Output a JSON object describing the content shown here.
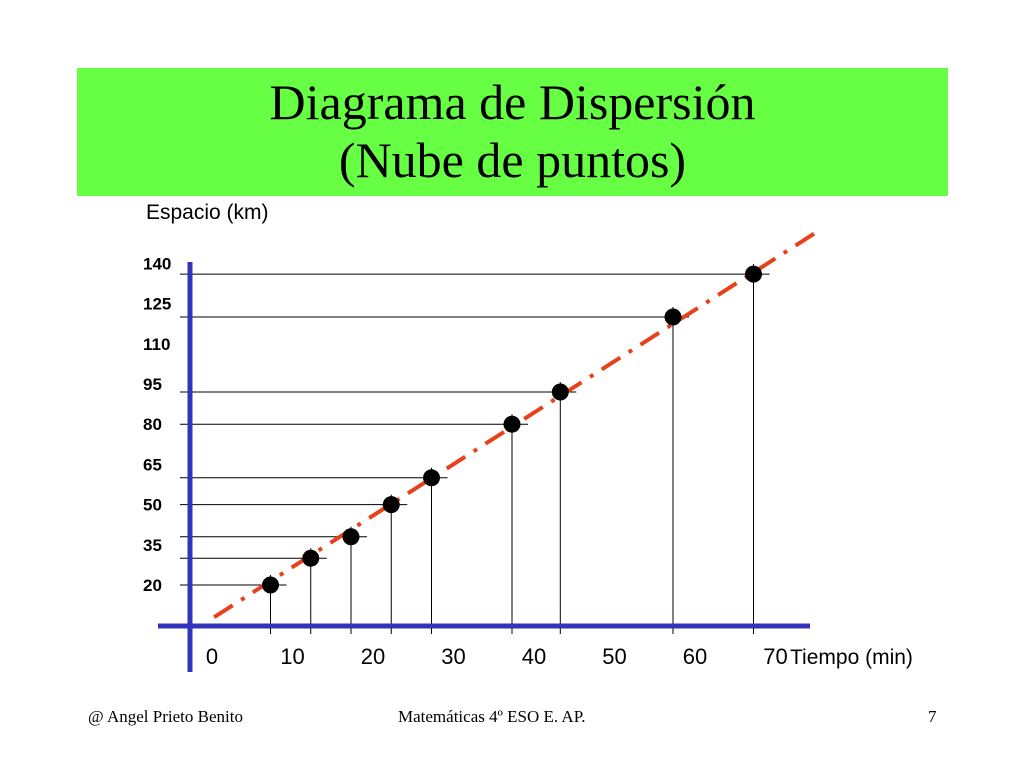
{
  "slide": {
    "title_line1": "Diagrama de Dispersión",
    "title_line2": "(Nube de puntos)",
    "title_bg": "#66ff44"
  },
  "footer": {
    "left": "@  Angel Prieto Benito",
    "center": "Matemáticas  4º ESO  E. AP.",
    "page": "7"
  },
  "chart_data": {
    "type": "scatter",
    "title": "",
    "xlabel": "Tiempo (min)",
    "ylabel": "Espacio (km)",
    "x_ticks": [
      0,
      10,
      20,
      30,
      40,
      50,
      60,
      70
    ],
    "y_ticks": [
      20,
      35,
      50,
      65,
      80,
      95,
      110,
      125,
      140
    ],
    "xlim": [
      -5,
      75
    ],
    "ylim": [
      8,
      150
    ],
    "series": [
      {
        "points": [
          {
            "x": 10,
            "y": 20
          },
          {
            "x": 15,
            "y": 30
          },
          {
            "x": 20,
            "y": 38
          },
          {
            "x": 25,
            "y": 50
          },
          {
            "x": 30,
            "y": 60
          },
          {
            "x": 40,
            "y": 80
          },
          {
            "x": 46,
            "y": 92
          },
          {
            "x": 60,
            "y": 120
          },
          {
            "x": 70,
            "y": 136
          }
        ]
      }
    ],
    "trend_line": {
      "style": "dash-dot",
      "color": "#e8401a",
      "from": {
        "x": 3,
        "y": 8
      },
      "to": {
        "x": 78,
        "y": 152
      }
    },
    "axis_color": "#3333bb",
    "drop_lines": true,
    "grid": false
  }
}
